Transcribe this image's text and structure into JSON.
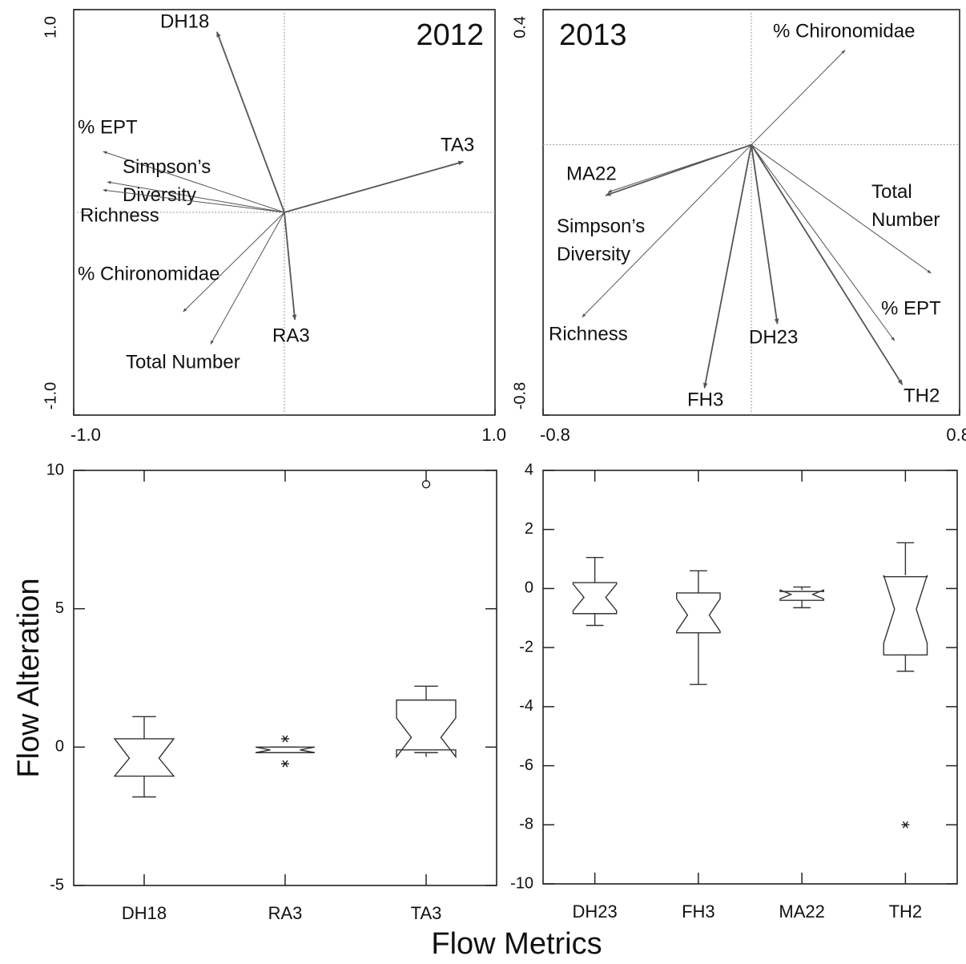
{
  "chart_data": [
    {
      "type": "biplot",
      "annotation": "2012",
      "xlim": [
        -1,
        1
      ],
      "ylim": [
        -1,
        1
      ],
      "xticks": [
        {
          "value": -1,
          "label": "-1.0"
        },
        {
          "value": 1,
          "label": "1.0"
        }
      ],
      "yticks": [
        {
          "value": -1,
          "label": "-1.0"
        },
        {
          "value": 1,
          "label": "1.0"
        }
      ],
      "color": "#555555",
      "vectors": [
        {
          "name": "DH18",
          "x": -0.32,
          "y": 0.89
        },
        {
          "name": "TA3",
          "x": 0.85,
          "y": 0.25
        },
        {
          "name": "RA3",
          "x": 0.05,
          "y": -0.53
        },
        {
          "name": "% EPT",
          "x": -0.86,
          "y": 0.3
        },
        {
          "name": "Simpson’s Diversity",
          "x": -0.84,
          "y": 0.15
        },
        {
          "name": "Richness",
          "x": -0.86,
          "y": 0.11
        },
        {
          "name": "% Chironomidae",
          "x": -0.48,
          "y": -0.49
        },
        {
          "name": "Total Number",
          "x": -0.35,
          "y": -0.65
        }
      ]
    },
    {
      "type": "biplot",
      "annotation": "2013",
      "xlim": [
        -0.8,
        0.8
      ],
      "ylim": [
        -0.8,
        0.4
      ],
      "xticks": [
        {
          "value": -0.8,
          "label": "-0.8"
        },
        {
          "value": 0.8,
          "label": "0.8"
        }
      ],
      "yticks": [
        {
          "value": -0.8,
          "label": "-0.8"
        },
        {
          "value": 0.4,
          "label": "0.4"
        }
      ],
      "color": "#555555",
      "vectors": [
        {
          "name": "% Chironomidae",
          "x": 0.36,
          "y": 0.28
        },
        {
          "name": "MA22",
          "x": -0.56,
          "y": -0.15
        },
        {
          "name": "Simpson’s Diversity",
          "x": -0.55,
          "y": -0.14
        },
        {
          "name": "Richness",
          "x": -0.65,
          "y": -0.51
        },
        {
          "name": "FH3",
          "x": -0.18,
          "y": -0.72
        },
        {
          "name": "DH23",
          "x": 0.1,
          "y": -0.53
        },
        {
          "name": "Total Number",
          "x": 0.69,
          "y": -0.38
        },
        {
          "name": "% EPT",
          "x": 0.55,
          "y": -0.58
        },
        {
          "name": "TH2",
          "x": 0.58,
          "y": -0.71
        }
      ]
    },
    {
      "type": "box",
      "ylabel": "Flow Alteration",
      "xlabel": "Flow Metrics",
      "ylim": [
        -5,
        10
      ],
      "yticks": [
        -5,
        0,
        5,
        10
      ],
      "color": "#333333",
      "categories": [
        "DH18",
        "RA3",
        "TA3"
      ],
      "boxes": [
        {
          "whisker_low": -1.8,
          "q1": -1.05,
          "notch_low": -1.05,
          "median": -0.4,
          "notch_high": 0.3,
          "q3": 0.3,
          "whisker_high": 1.1
        },
        {
          "whisker_low": -0.2,
          "q1": -0.2,
          "notch_low": -0.2,
          "median": -0.1,
          "notch_high": 0,
          "q3": 0,
          "whisker_high": 0,
          "outliers": [
            0.3,
            -0.6
          ]
        },
        {
          "whisker_low": -0.2,
          "q1": -0.1,
          "notch_low": -0.35,
          "median": 0.35,
          "notch_high": 1.05,
          "q3": 1.7,
          "whisker_high": 2.2,
          "far_outliers": [
            9.5
          ]
        }
      ]
    },
    {
      "type": "box",
      "ylim": [
        -10,
        4
      ],
      "yticks": [
        -10,
        -8,
        -6,
        -4,
        -2,
        0,
        2,
        4
      ],
      "color": "#333333",
      "categories": [
        "DH23",
        "FH3",
        "MA22",
        "TH2"
      ],
      "boxes": [
        {
          "whisker_low": -1.25,
          "q1": -0.85,
          "notch_low": -0.75,
          "median": -0.3,
          "notch_high": 0.15,
          "q3": 0.2,
          "whisker_high": 1.05
        },
        {
          "whisker_low": -3.25,
          "q1": -1.5,
          "notch_low": -1.45,
          "median": -0.9,
          "notch_high": -0.35,
          "q3": -0.15,
          "whisker_high": 0.6
        },
        {
          "whisker_low": -0.65,
          "q1": -0.4,
          "notch_low": -0.35,
          "median": -0.2,
          "notch_high": -0.05,
          "q3": -0.1,
          "whisker_high": 0.05
        },
        {
          "whisker_low": -2.8,
          "q1": -2.25,
          "notch_low": -1.85,
          "median": -0.7,
          "notch_high": 0.45,
          "q3": 0.4,
          "whisker_high": 1.55,
          "outliers": [
            -8
          ]
        }
      ]
    }
  ]
}
